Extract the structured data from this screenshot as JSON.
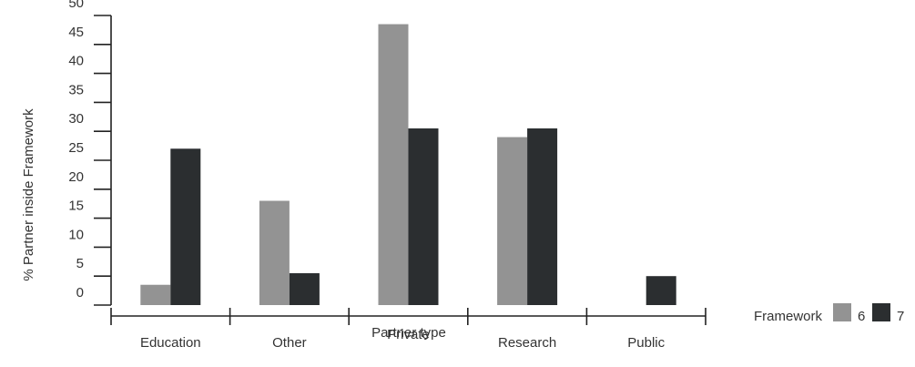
{
  "chart_data": {
    "type": "bar",
    "categories": [
      "Education",
      "Other",
      "Private",
      "Research",
      "Public"
    ],
    "series": [
      {
        "name": "6",
        "values": [
          3.5,
          18,
          48.5,
          29,
          0
        ],
        "color": "#939393"
      },
      {
        "name": "7",
        "values": [
          27,
          5.5,
          30.5,
          30.5,
          5
        ],
        "color": "#2b2e30"
      }
    ],
    "xlabel": "Partner type",
    "ylabel": "% Partner inside Framework",
    "ylim": [
      0,
      50
    ],
    "y_ticks": [
      0,
      5,
      10,
      15,
      20,
      25,
      30,
      35,
      40,
      45,
      50
    ],
    "legend": {
      "title": "Framework",
      "position": "right"
    },
    "grid": false
  }
}
